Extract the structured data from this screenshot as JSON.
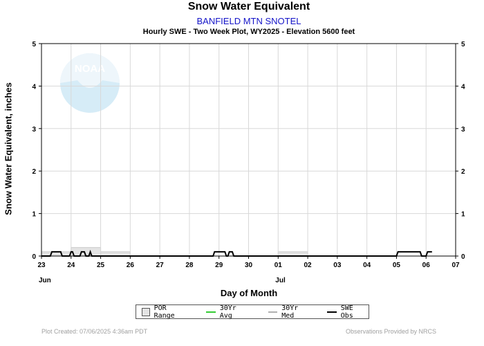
{
  "title": "Snow Water Equivalent",
  "station": "BANFIELD MTN SNOTEL",
  "subtitle": "Hourly SWE - Two Week Plot, WY2025 -  Elevation 5600 feet",
  "logo_text": "NOAA",
  "footer": {
    "created": "Plot Created: 07/06/2025 4:36am PDT",
    "provider": "Observations Provided by NRCS"
  },
  "legend": {
    "por_range": "POR Range",
    "avg": "30Yr Avg",
    "med": "30Yr Med",
    "obs": "SWE Obs"
  },
  "colors": {
    "por_fill": "#e4e4e4",
    "avg": "#33cc33",
    "med": "#b0b0b0",
    "obs": "#000000",
    "station": "#1414c8",
    "grid": "#d8d8d8"
  },
  "chart_data": {
    "type": "line",
    "title": "Snow Water Equivalent",
    "subtitle": "Hourly SWE - Two Week Plot, WY2025 -  Elevation 5600 feet",
    "xlabel": "Day of Month",
    "ylabel": "Snow Water Equivalent, inches",
    "ylim": [
      0,
      5
    ],
    "yticks": [
      0,
      1,
      2,
      3,
      4,
      5
    ],
    "xlim_days": [
      0,
      14
    ],
    "xtick_labels": [
      "23",
      "24",
      "25",
      "26",
      "27",
      "28",
      "29",
      "30",
      "01",
      "02",
      "03",
      "04",
      "05",
      "06",
      "07"
    ],
    "month_labels": [
      {
        "text": "Jun",
        "day": 0
      },
      {
        "text": "Jul",
        "day": 8
      }
    ],
    "grid": true,
    "legend_position": "bottom",
    "series": [
      {
        "name": "POR Range",
        "type": "area",
        "segments": [
          {
            "x": [
              0,
              1
            ],
            "y": 0.1
          },
          {
            "x": [
              1,
              2
            ],
            "y": 0.2
          },
          {
            "x": [
              2,
              3
            ],
            "y": 0.1
          },
          {
            "x": [
              8,
              9
            ],
            "y": 0.1
          }
        ]
      },
      {
        "name": "SWE Obs",
        "x": [
          0,
          0.3,
          0.35,
          0.65,
          0.7,
          0.95,
          1.0,
          1.05,
          1.1,
          1.3,
          1.35,
          1.45,
          1.5,
          1.6,
          1.65,
          1.7,
          5.8,
          5.85,
          6.2,
          6.25,
          6.3,
          6.35,
          6.45,
          6.5,
          6.6,
          6.65,
          12.0,
          12.05,
          12.8,
          12.85,
          13.0,
          13.05,
          13.2
        ],
        "y": [
          0,
          0,
          0.1,
          0.1,
          0,
          0,
          0.1,
          0.1,
          0,
          0,
          0.1,
          0.1,
          0,
          0,
          0.1,
          0,
          0,
          0.1,
          0.1,
          0,
          0,
          0.1,
          0.1,
          0,
          0,
          0,
          0,
          0.1,
          0.1,
          0,
          0,
          0.1,
          0.1
        ]
      }
    ]
  }
}
